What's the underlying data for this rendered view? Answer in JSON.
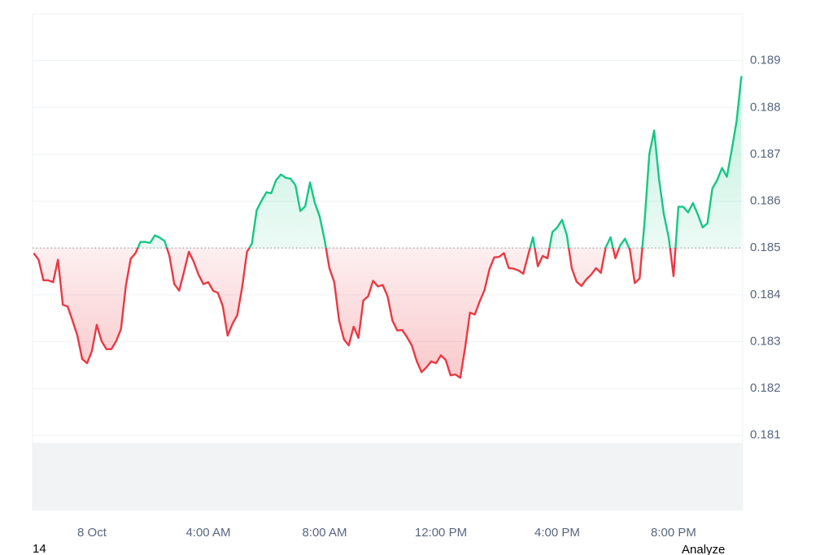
{
  "chart_data": {
    "type": "line",
    "x": [
      -120,
      -110,
      -100,
      -90,
      -80,
      -70,
      -60,
      -50,
      -40,
      -30,
      -20,
      -10,
      0,
      10,
      20,
      30,
      40,
      50,
      60,
      70,
      80,
      90,
      100,
      110,
      120,
      130,
      140,
      150,
      160,
      170,
      180,
      190,
      200,
      210,
      220,
      230,
      240,
      250,
      260,
      270,
      280,
      290,
      300,
      310,
      320,
      330,
      340,
      350,
      360,
      370,
      380,
      390,
      400,
      410,
      420,
      430,
      440,
      450,
      460,
      470,
      480,
      490,
      500,
      510,
      520,
      530,
      540,
      550,
      560,
      570,
      580,
      590,
      600,
      610,
      620,
      630,
      640,
      650,
      660,
      670,
      680,
      690,
      700,
      710,
      720,
      730,
      740,
      750,
      760,
      770,
      780,
      790,
      800,
      810,
      820,
      830,
      840,
      850,
      860,
      870,
      880,
      890,
      900,
      910,
      920,
      930,
      940,
      950,
      960,
      970,
      980,
      990,
      1000,
      1010,
      1020,
      1030,
      1040,
      1050,
      1060,
      1070,
      1080,
      1090,
      1100,
      1110,
      1120,
      1130,
      1140,
      1150,
      1160,
      1170,
      1180,
      1190,
      1200,
      1210,
      1220,
      1230,
      1240,
      1250,
      1260,
      1270,
      1280,
      1290,
      1300,
      1310,
      1320,
      1330,
      1340
    ],
    "values": [
      0.18489,
      0.18475,
      0.18431,
      0.18431,
      0.18427,
      0.18475,
      0.18379,
      0.18375,
      0.18345,
      0.18313,
      0.18263,
      0.18254,
      0.1828,
      0.18336,
      0.18301,
      0.18284,
      0.18284,
      0.18301,
      0.18327,
      0.18419,
      0.18477,
      0.18489,
      0.18513,
      0.18513,
      0.18511,
      0.18527,
      0.18522,
      0.18515,
      0.18483,
      0.18423,
      0.18409,
      0.18449,
      0.18492,
      0.18471,
      0.18443,
      0.18423,
      0.18427,
      0.18409,
      0.18404,
      0.18376,
      0.18313,
      0.18338,
      0.18357,
      0.18416,
      0.18492,
      0.18509,
      0.18581,
      0.18601,
      0.18619,
      0.18617,
      0.18645,
      0.18657,
      0.1865,
      0.18648,
      0.18634,
      0.18579,
      0.18589,
      0.1864,
      0.18596,
      0.18567,
      0.18518,
      0.18457,
      0.18427,
      0.18345,
      0.18305,
      0.18292,
      0.18332,
      0.18308,
      0.18388,
      0.18397,
      0.1843,
      0.18418,
      0.18421,
      0.18397,
      0.18345,
      0.18324,
      0.18325,
      0.1831,
      0.18292,
      0.18259,
      0.18235,
      0.18245,
      0.18258,
      0.18254,
      0.18271,
      0.18261,
      0.18228,
      0.1823,
      0.18223,
      0.18287,
      0.18362,
      0.18358,
      0.18386,
      0.1841,
      0.18454,
      0.1848,
      0.18481,
      0.18489,
      0.18457,
      0.18456,
      0.18452,
      0.18445,
      0.18485,
      0.18523,
      0.18461,
      0.18483,
      0.18478,
      0.18534,
      0.18544,
      0.1856,
      0.18527,
      0.18457,
      0.18428,
      0.18419,
      0.18433,
      0.18443,
      0.18457,
      0.18447,
      0.18501,
      0.18523,
      0.18478,
      0.18506,
      0.1852,
      0.18496,
      0.18425,
      0.18435,
      0.18553,
      0.187,
      0.18751,
      0.18648,
      0.18572,
      0.18523,
      0.1844,
      0.18588,
      0.18588,
      0.18576,
      0.18596,
      0.18572,
      0.18544,
      0.18553,
      0.18627,
      0.18645,
      0.18671,
      0.18652,
      0.18709,
      0.1877,
      0.18867
    ],
    "baseline": 0.185,
    "up_color": "#16c784",
    "down_color": "#ea3943",
    "xlim": [
      -122.5,
      1342.7
    ],
    "xticks": [
      {
        "value": 0,
        "label": "8 Oct"
      },
      {
        "value": 240,
        "label": "4:00 AM"
      },
      {
        "value": 480,
        "label": "8:00 AM"
      },
      {
        "value": 720,
        "label": "12:00 PM"
      },
      {
        "value": 960,
        "label": "4:00 PM"
      },
      {
        "value": 1200,
        "label": "8:00 PM"
      }
    ],
    "ylim": [
      0.1794,
      0.19
    ],
    "yticks": [
      0.181,
      0.182,
      0.183,
      0.184,
      0.185,
      0.186,
      0.187,
      0.188,
      0.189
    ],
    "grid": true
  },
  "footer": {
    "left": "14",
    "right": "Analyze"
  }
}
